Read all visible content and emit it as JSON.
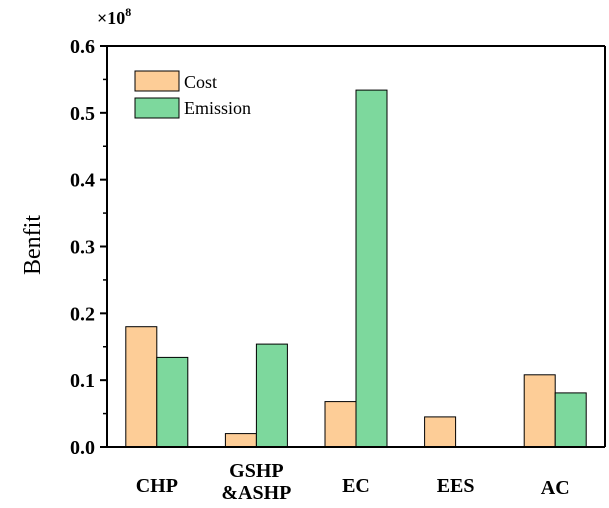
{
  "chart_data": {
    "type": "bar",
    "title": "",
    "xlabel": "",
    "ylabel": "Benfit",
    "y_multiplier": "×10",
    "y_multiplier_exp": "8",
    "ylim": [
      0,
      0.6
    ],
    "yticks": [
      "0.0",
      "0.1",
      "0.2",
      "0.3",
      "0.4",
      "0.5",
      "0.6"
    ],
    "categories": [
      {
        "line1": "CHP",
        "line2": ""
      },
      {
        "line1": "GSHP",
        "line2": "&ASHP"
      },
      {
        "line1": "EC",
        "line2": ""
      },
      {
        "line1": "EES",
        "line2": ""
      },
      {
        "line1": "AC",
        "line2": ""
      }
    ],
    "series": [
      {
        "name": "Cost",
        "color": "#FDCD97",
        "values": [
          0.18,
          0.02,
          0.068,
          0.045,
          0.108
        ]
      },
      {
        "name": "Emission",
        "color": "#7DD89D",
        "values": [
          0.134,
          0.154,
          0.534,
          0,
          0.081
        ]
      }
    ],
    "legend": "top-left",
    "grid": false
  }
}
